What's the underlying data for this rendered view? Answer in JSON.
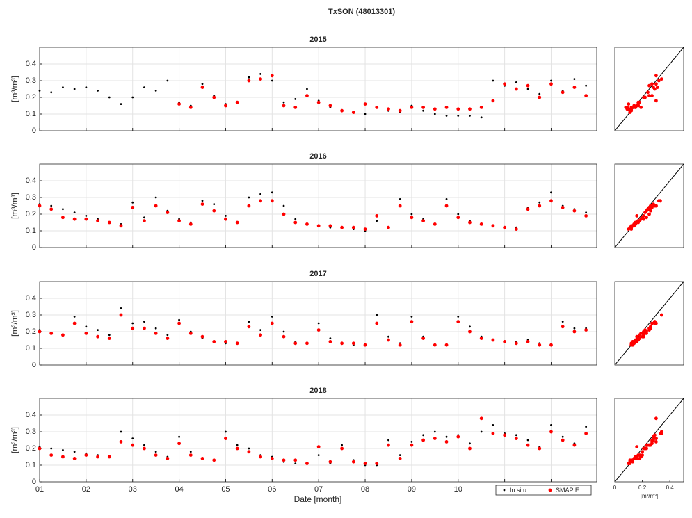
{
  "figure": {
    "title": "TxSON (48013301)",
    "xlabel": "Date [month]"
  },
  "chart_data": [
    {
      "type": "scatter",
      "title": "2015",
      "ylabel": "[m³/m³]",
      "grid": true,
      "x": [
        1,
        1.25,
        1.5,
        1.75,
        2,
        2.25,
        2.5,
        2.75,
        3,
        3.25,
        3.5,
        3.75,
        4,
        4.25,
        4.5,
        4.75,
        5,
        5.25,
        5.5,
        5.75,
        6,
        6.25,
        6.5,
        6.75,
        7,
        7.25,
        7.5,
        7.75,
        8,
        8.25,
        8.5,
        8.75,
        9,
        9.25,
        9.5,
        9.75,
        10,
        10.25,
        10.5,
        10.75,
        11,
        11.25,
        11.5,
        11.75,
        12,
        12.25,
        12.5,
        12.75
      ],
      "xlim": [
        1,
        12.98
      ],
      "xticks": [
        1,
        2,
        3,
        4,
        5,
        6,
        7,
        8,
        9,
        10,
        11,
        12
      ],
      "ylim": [
        0,
        0.5
      ],
      "yticks": [
        0,
        0.1,
        0.2,
        0.3,
        0.4
      ],
      "series": [
        {
          "name": "In situ",
          "color": "#000000",
          "values": [
            0.24,
            0.23,
            0.26,
            0.25,
            0.26,
            0.24,
            0.2,
            0.16,
            0.2,
            0.26,
            0.24,
            0.3,
            0.17,
            0.15,
            0.28,
            0.21,
            0.16,
            0.17,
            0.32,
            0.34,
            0.3,
            0.17,
            0.19,
            0.25,
            0.18,
            0.14,
            0.12,
            0.11,
            0.1,
            0.14,
            0.12,
            0.11,
            0.15,
            0.12,
            0.1,
            0.09,
            0.09,
            0.09,
            0.08,
            0.3,
            0.27,
            0.29,
            0.25,
            0.22,
            0.3,
            0.24,
            0.31,
            0.27
          ]
        },
        {
          "name": "SMAP E",
          "color": "#ff0000",
          "values": [
            null,
            null,
            null,
            null,
            null,
            null,
            null,
            null,
            null,
            null,
            null,
            null,
            0.16,
            0.14,
            0.26,
            0.2,
            0.15,
            0.17,
            0.3,
            0.31,
            0.33,
            0.15,
            0.14,
            0.21,
            0.17,
            0.15,
            0.12,
            0.11,
            0.16,
            0.14,
            0.13,
            0.12,
            0.14,
            0.14,
            0.13,
            0.14,
            0.13,
            0.13,
            0.14,
            0.18,
            0.28,
            0.25,
            0.27,
            0.2,
            0.28,
            0.23,
            0.26,
            0.21
          ]
        }
      ],
      "comparison": {
        "type": "scatter",
        "xlim": [
          0,
          0.5
        ],
        "ylim": [
          0,
          0.5
        ],
        "identity_line": true
      }
    },
    {
      "type": "scatter",
      "title": "2016",
      "ylabel": "[m³/m³]",
      "grid": true,
      "x": [
        1,
        1.25,
        1.5,
        1.75,
        2,
        2.25,
        2.5,
        2.75,
        3,
        3.25,
        3.5,
        3.75,
        4,
        4.25,
        4.5,
        4.75,
        5,
        5.25,
        5.5,
        5.75,
        6,
        6.25,
        6.5,
        6.75,
        7,
        7.25,
        7.5,
        7.75,
        8,
        8.25,
        8.5,
        8.75,
        9,
        9.25,
        9.5,
        9.75,
        10,
        10.25,
        10.5,
        10.75,
        11,
        11.25,
        11.5,
        11.75,
        12,
        12.25,
        12.5,
        12.75
      ],
      "xlim": [
        1,
        12.98
      ],
      "xticks": [
        1,
        2,
        3,
        4,
        5,
        6,
        7,
        8,
        9,
        10,
        11,
        12
      ],
      "ylim": [
        0,
        0.5
      ],
      "yticks": [
        0,
        0.1,
        0.2,
        0.3,
        0.4
      ],
      "series": [
        {
          "name": "In situ",
          "color": "#000000",
          "values": [
            0.26,
            0.25,
            0.23,
            0.21,
            0.19,
            0.17,
            0.15,
            0.14,
            0.27,
            0.18,
            0.3,
            0.22,
            0.17,
            0.15,
            0.28,
            0.26,
            0.19,
            0.15,
            0.3,
            0.32,
            0.33,
            0.25,
            0.17,
            0.14,
            0.13,
            0.12,
            0.12,
            0.11,
            0.1,
            0.16,
            0.12,
            0.29,
            0.2,
            0.17,
            0.14,
            0.29,
            0.2,
            0.16,
            0.14,
            0.13,
            0.12,
            0.12,
            0.24,
            0.27,
            0.33,
            0.25,
            0.23,
            0.21
          ]
        },
        {
          "name": "SMAP E",
          "color": "#ff0000",
          "values": [
            0.25,
            0.23,
            0.18,
            0.17,
            0.17,
            0.16,
            0.15,
            0.13,
            0.24,
            0.16,
            0.25,
            0.21,
            0.16,
            0.14,
            0.26,
            0.22,
            0.17,
            0.15,
            0.25,
            0.28,
            0.28,
            0.2,
            0.15,
            0.14,
            0.13,
            0.13,
            0.12,
            0.12,
            0.11,
            0.19,
            0.12,
            0.25,
            0.18,
            0.16,
            0.14,
            0.25,
            0.18,
            0.15,
            0.14,
            0.13,
            0.12,
            0.11,
            0.23,
            0.25,
            0.28,
            0.24,
            0.22,
            0.19
          ]
        }
      ],
      "comparison": {
        "type": "scatter",
        "xlim": [
          0,
          0.5
        ],
        "ylim": [
          0,
          0.5
        ],
        "identity_line": true
      }
    },
    {
      "type": "scatter",
      "title": "2017",
      "ylabel": "[m³/m³]",
      "grid": true,
      "x": [
        1,
        1.25,
        1.5,
        1.75,
        2,
        2.25,
        2.5,
        2.75,
        3,
        3.25,
        3.5,
        3.75,
        4,
        4.25,
        4.5,
        4.75,
        5,
        5.25,
        5.5,
        5.75,
        6,
        6.25,
        6.5,
        6.75,
        7,
        7.25,
        7.5,
        7.75,
        8,
        8.25,
        8.5,
        8.75,
        9,
        9.25,
        9.5,
        9.75,
        10,
        10.25,
        10.5,
        10.75,
        11,
        11.25,
        11.5,
        11.75,
        12,
        12.25,
        12.5,
        12.75
      ],
      "xlim": [
        1,
        12.98
      ],
      "xticks": [
        1,
        2,
        3,
        4,
        5,
        6,
        7,
        8,
        9,
        10,
        11,
        12
      ],
      "ylim": [
        0,
        0.5
      ],
      "yticks": [
        0,
        0.1,
        0.2,
        0.3,
        0.4
      ],
      "series": [
        {
          "name": "In situ",
          "color": "#000000",
          "values": [
            0.21,
            0.19,
            0.18,
            0.29,
            0.23,
            0.21,
            0.18,
            0.34,
            0.25,
            0.26,
            0.22,
            0.18,
            0.27,
            0.2,
            0.16,
            0.14,
            0.13,
            0.13,
            0.26,
            0.21,
            0.29,
            0.2,
            0.14,
            0.13,
            0.25,
            0.16,
            0.13,
            0.12,
            0.12,
            0.3,
            0.17,
            0.13,
            0.29,
            0.17,
            0.12,
            0.12,
            0.29,
            0.23,
            0.17,
            0.15,
            0.14,
            0.14,
            0.15,
            0.13,
            0.12,
            0.26,
            0.22,
            0.22
          ]
        },
        {
          "name": "SMAP E",
          "color": "#ff0000",
          "values": [
            0.2,
            0.19,
            0.18,
            0.25,
            0.19,
            0.17,
            0.16,
            0.3,
            0.22,
            0.22,
            0.19,
            0.16,
            0.25,
            0.19,
            0.17,
            0.14,
            0.14,
            0.13,
            0.23,
            0.18,
            0.25,
            0.17,
            0.13,
            0.13,
            0.21,
            0.14,
            0.13,
            0.13,
            0.12,
            0.25,
            0.15,
            0.12,
            0.26,
            0.16,
            0.12,
            0.12,
            0.26,
            0.2,
            0.16,
            0.15,
            0.14,
            0.13,
            0.14,
            0.12,
            0.12,
            0.23,
            0.2,
            0.21
          ]
        }
      ],
      "comparison": {
        "type": "scatter",
        "xlim": [
          0,
          0.5
        ],
        "ylim": [
          0,
          0.5
        ],
        "identity_line": true
      }
    },
    {
      "type": "scatter",
      "title": "2018",
      "ylabel": "[m³/m³]",
      "grid": true,
      "x": [
        1,
        1.25,
        1.5,
        1.75,
        2,
        2.25,
        2.5,
        2.75,
        3,
        3.25,
        3.5,
        3.75,
        4,
        4.25,
        4.5,
        4.75,
        5,
        5.25,
        5.5,
        5.75,
        6,
        6.25,
        6.5,
        6.75,
        7,
        7.25,
        7.5,
        7.75,
        8,
        8.25,
        8.5,
        8.75,
        9,
        9.25,
        9.5,
        9.75,
        10,
        10.25,
        10.5,
        10.75,
        11,
        11.25,
        11.5,
        11.75,
        12,
        12.25,
        12.5,
        12.75
      ],
      "xlim": [
        1,
        12.98
      ],
      "xticks": [
        {
          "value": 1,
          "label": "01"
        },
        {
          "value": 2,
          "label": "02"
        },
        {
          "value": 3,
          "label": "03"
        },
        {
          "value": 4,
          "label": "04"
        },
        {
          "value": 5,
          "label": "05"
        },
        {
          "value": 6,
          "label": "06"
        },
        {
          "value": 7,
          "label": "07"
        },
        {
          "value": 8,
          "label": "08"
        },
        {
          "value": 9,
          "label": "09"
        },
        {
          "value": 10,
          "label": "10"
        },
        {
          "value": 11,
          "label": "11"
        },
        {
          "value": 12,
          "label": "12"
        }
      ],
      "ylim": [
        0,
        0.5
      ],
      "yticks": [
        0,
        0.1,
        0.2,
        0.3,
        0.4
      ],
      "legend": "below-right",
      "series": [
        {
          "name": "In situ",
          "color": "#000000",
          "values": [
            0.21,
            0.2,
            0.19,
            0.18,
            0.17,
            0.16,
            0.15,
            0.3,
            0.26,
            0.22,
            0.18,
            0.15,
            0.27,
            0.18,
            0.14,
            0.13,
            0.3,
            0.22,
            0.2,
            0.16,
            0.15,
            0.12,
            0.11,
            0.11,
            0.16,
            0.11,
            0.22,
            0.13,
            0.1,
            0.1,
            0.25,
            0.16,
            0.24,
            0.28,
            0.3,
            0.27,
            0.28,
            0.23,
            0.3,
            0.34,
            0.29,
            0.28,
            0.25,
            0.21,
            0.34,
            0.27,
            0.23,
            0.33
          ]
        },
        {
          "name": "SMAP E",
          "color": "#ff0000",
          "values": [
            0.2,
            0.16,
            0.15,
            0.14,
            0.16,
            0.15,
            0.15,
            0.24,
            0.22,
            0.2,
            0.16,
            0.14,
            0.23,
            0.16,
            0.14,
            0.13,
            0.26,
            0.2,
            0.18,
            0.15,
            0.14,
            0.13,
            0.13,
            0.11,
            0.21,
            0.12,
            0.2,
            0.12,
            0.11,
            0.11,
            0.22,
            0.14,
            0.22,
            0.25,
            0.26,
            0.24,
            0.27,
            0.2,
            0.38,
            0.29,
            0.28,
            0.26,
            0.22,
            0.2,
            0.3,
            0.25,
            0.22,
            0.29
          ]
        }
      ],
      "comparison": {
        "type": "scatter",
        "xlim": [
          0,
          0.5
        ],
        "ylim": [
          0,
          0.5
        ],
        "identity_line": true,
        "xticks": [
          0,
          0.2,
          0.4
        ],
        "xlabel": "[m³/m³]"
      }
    }
  ]
}
